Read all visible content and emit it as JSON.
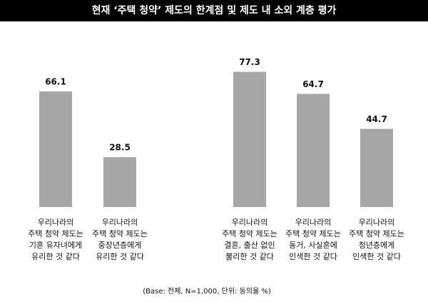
{
  "chart_data": {
    "type": "bar",
    "title": "현재 ‘주택 청약’ 제도의 한계점 및 제도 내 소외 계층 평가",
    "categories": [
      [
        "우리나라의",
        "주택 청약 제도는",
        "기혼 유자녀에게",
        "유리한 것 같다"
      ],
      [
        "우리나라의",
        "주택 청약 제도는",
        "중장년층에게",
        "유리한 것 같다"
      ],
      [
        "우리나라의",
        "주택 청약 제도는",
        "결혼, 출산 없인",
        "불리한 것 같다"
      ],
      [
        "우리나라의",
        "주택 청약 제도는",
        "동거, 사실혼에",
        "인색한 것 같다"
      ],
      [
        "우리나라의",
        "주택 청약 제도는",
        "청년층에게",
        "인색한 것 같다"
      ]
    ],
    "values": [
      66.1,
      28.5,
      77.3,
      64.7,
      44.7
    ],
    "color": "#a6a6a6",
    "note": "(Base: 전체, N=1,000, 단위: 동의율 %)"
  }
}
